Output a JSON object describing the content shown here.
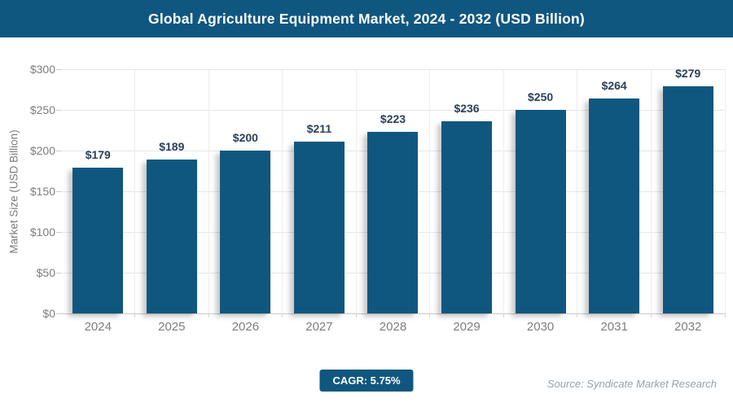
{
  "header": {
    "title": "Global Agriculture Equipment Market, 2024 - 2032 (USD Billion)"
  },
  "chart_data": {
    "type": "bar",
    "title": "Global Agriculture Equipment Market, 2024 - 2032 (USD Billion)",
    "categories": [
      "2024",
      "2025",
      "2026",
      "2027",
      "2028",
      "2029",
      "2030",
      "2031",
      "2032"
    ],
    "values": [
      179,
      189,
      200,
      211,
      223,
      236,
      250,
      264,
      279
    ],
    "value_labels": [
      "$179",
      "$189",
      "$200",
      "$211",
      "$223",
      "$236",
      "$250",
      "$264",
      "$279"
    ],
    "xlabel": "",
    "ylabel": "Market Size (USD Billion)",
    "ylim": [
      0,
      300
    ],
    "ytick_step": 50,
    "ytick_labels": [
      "$0",
      "$50",
      "$100",
      "$150",
      "$200",
      "$250",
      "$300"
    ],
    "grid": true,
    "legend_position": "none",
    "bar_color": "#105780"
  },
  "footer": {
    "cagr_label": "CAGR: 5.75%",
    "source_text": "Source: Syndicate Market Research"
  },
  "colors": {
    "brand": "#105780",
    "value_label": "#2b3e5c",
    "axis_text": "#7d7d7d",
    "gridline": "#e6e6e6",
    "source_text": "#93a1aa"
  }
}
